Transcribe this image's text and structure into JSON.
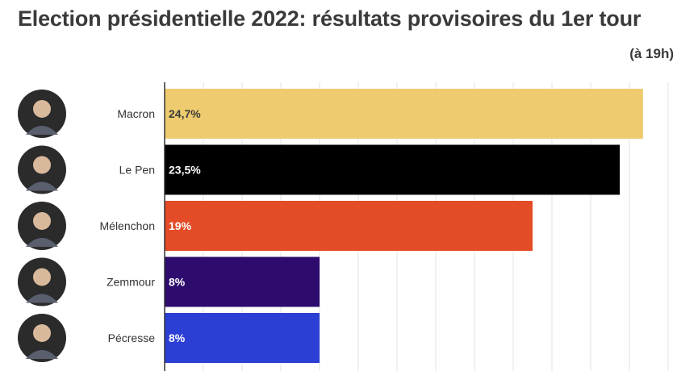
{
  "title": "Election présidentielle 2022: résultats provisoires du 1er tour",
  "subtitle": "(à 19h)",
  "chart_data": {
    "type": "bar",
    "orientation": "horizontal",
    "categories": [
      "Macron",
      "Le Pen",
      "Mélenchon",
      "Zemmour",
      "Pécresse"
    ],
    "values": [
      24.7,
      23.5,
      19,
      8,
      8
    ],
    "value_labels": [
      "24,7%",
      "23,5%",
      "19%",
      "8%",
      "8%"
    ],
    "colors": [
      "#EECB6E",
      "#000000",
      "#E34C26",
      "#2E0C6E",
      "#2C3FD4"
    ],
    "label_colors": [
      "#3a3a3a",
      "#ffffff",
      "#ffffff",
      "#ffffff",
      "#ffffff"
    ],
    "xlim": [
      0,
      26
    ],
    "grid": true,
    "gridline_step": 2
  }
}
